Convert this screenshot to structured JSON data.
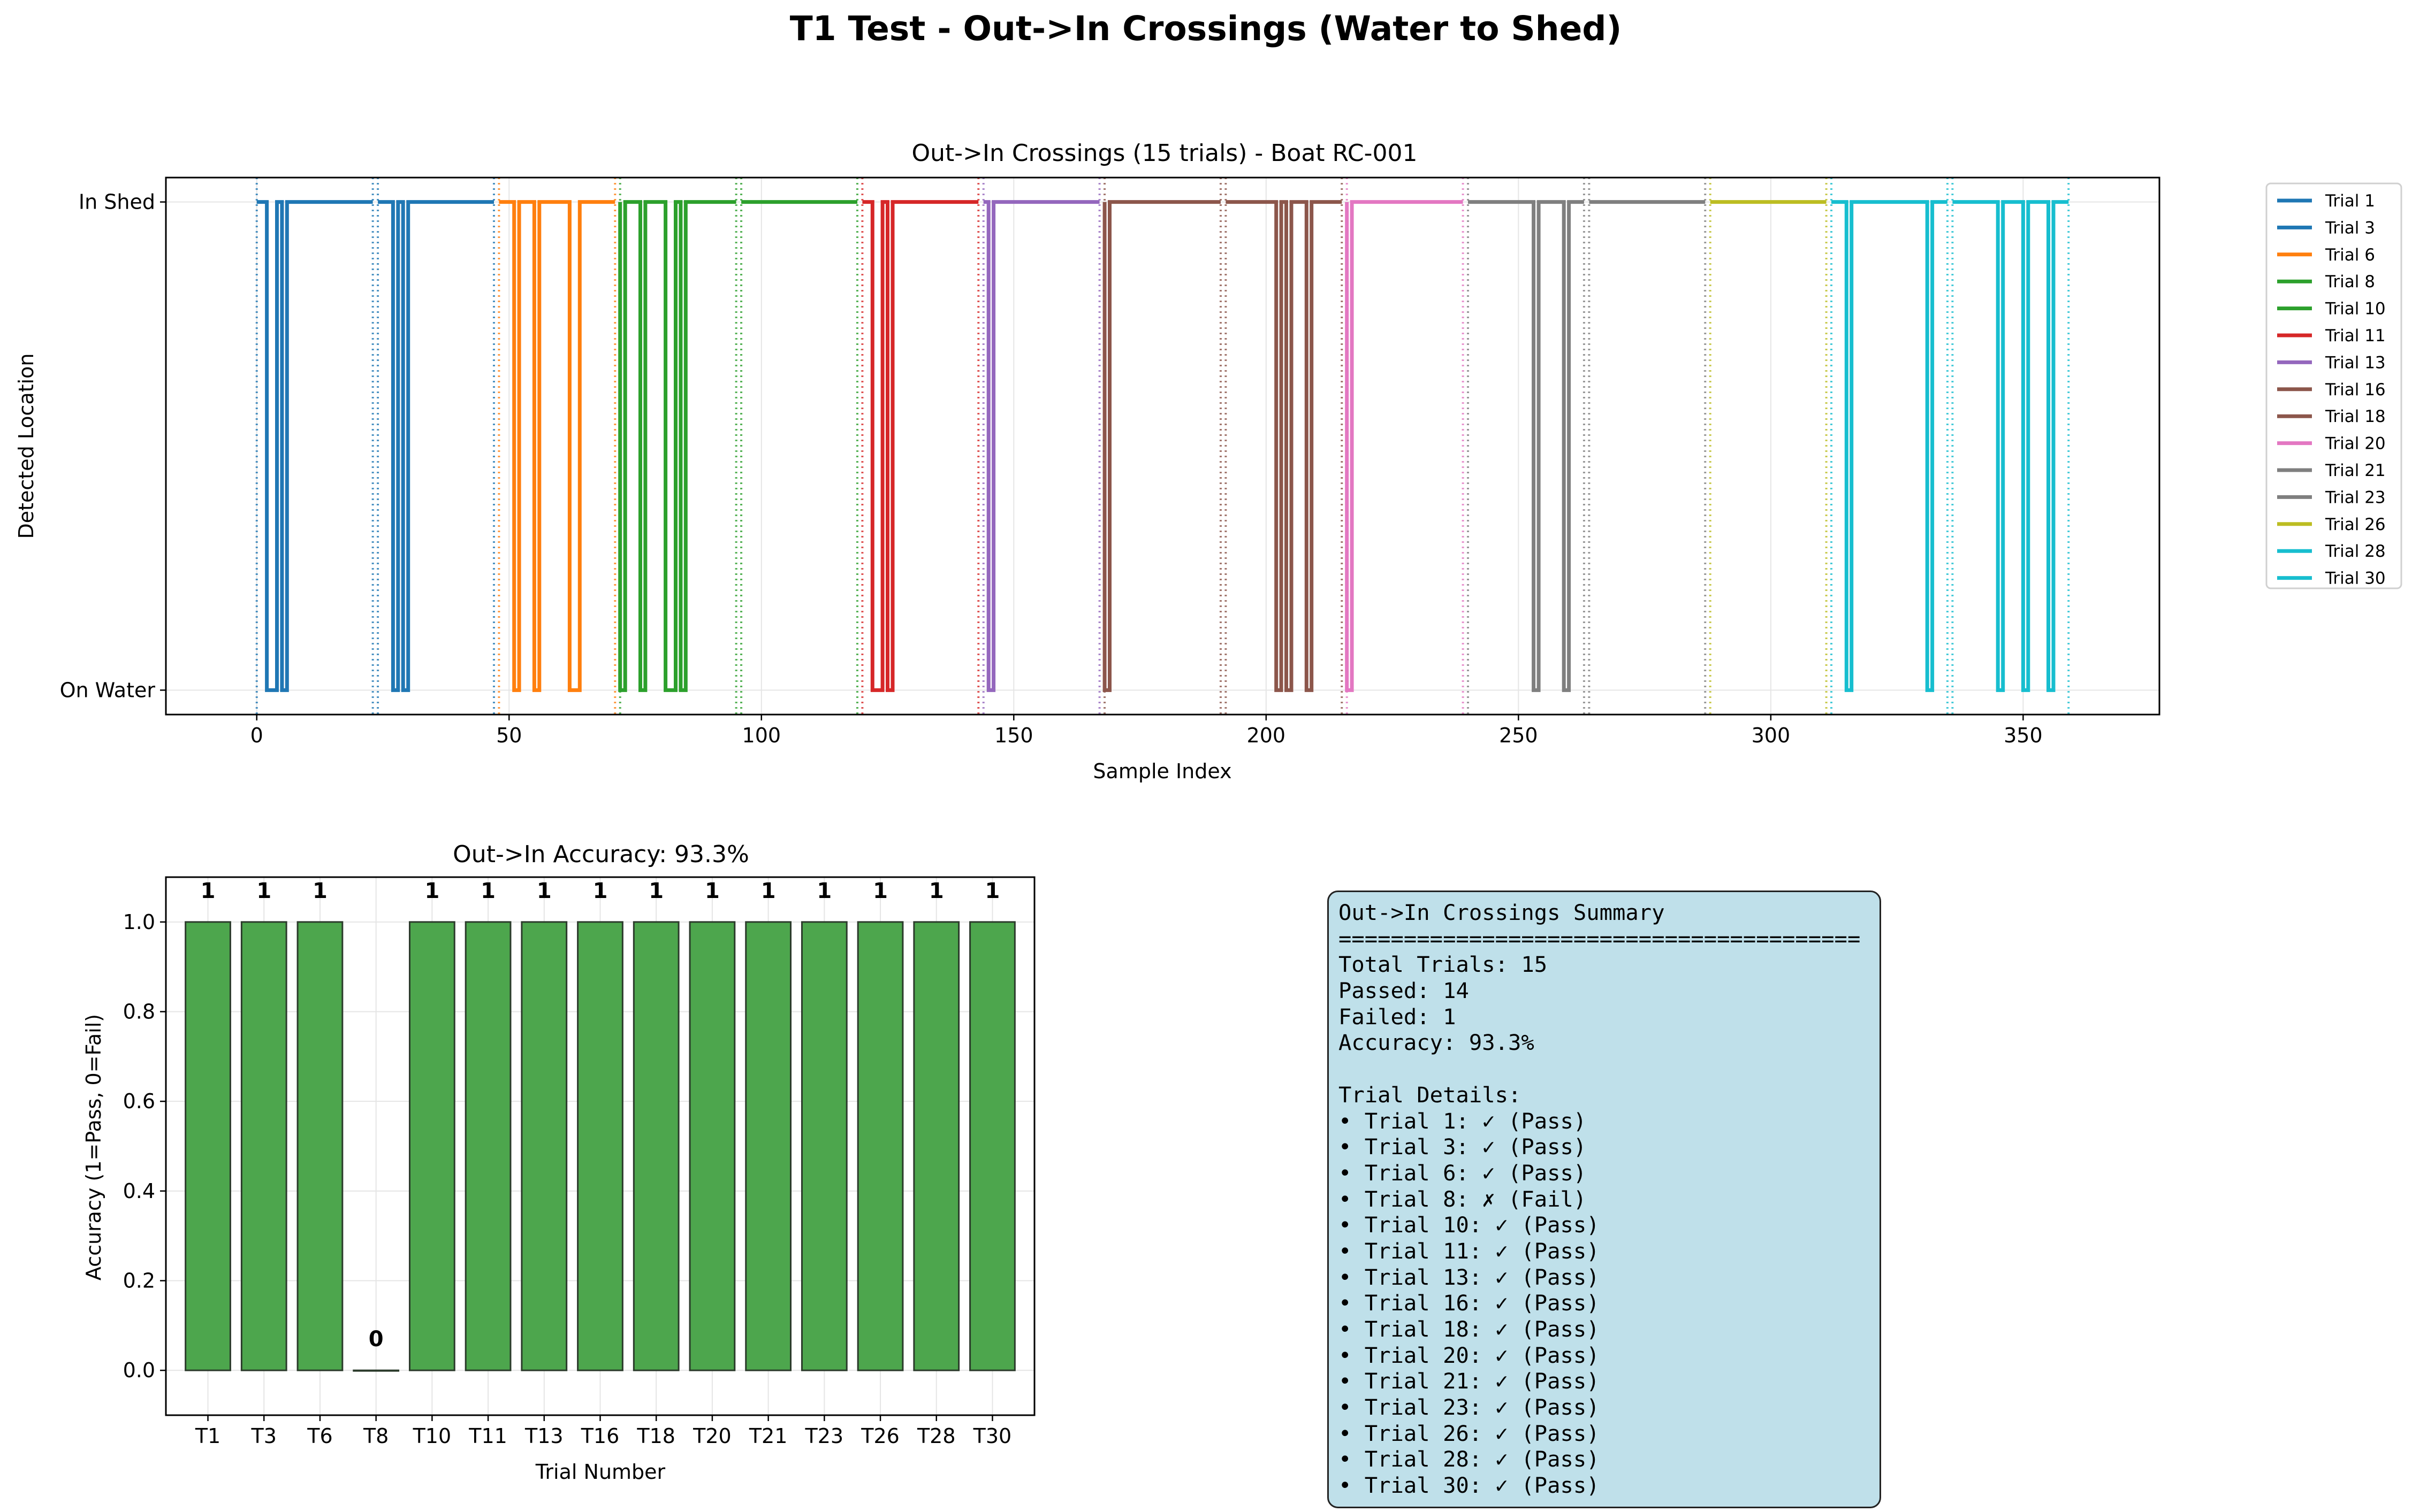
{
  "figure": {
    "suptitle": "T1 Test - Out->In Crossings (Water to Shed)"
  },
  "chart_data": [
    {
      "type": "line",
      "title": "Out->In Crossings (15 trials) - Boat RC-001",
      "xlabel": "Sample Index",
      "ylabel": "Detected Location",
      "xlim": [
        -18,
        377
      ],
      "ylim": [
        -0.05,
        1.05
      ],
      "xticks": [
        0,
        50,
        100,
        150,
        200,
        250,
        300,
        350
      ],
      "yticks": [
        0,
        1
      ],
      "ytick_labels": [
        "On Water",
        "In Shed"
      ],
      "grid": true,
      "legend_position": "outside-right",
      "series": [
        {
          "name": "Trial 1",
          "color": "#1f77b4",
          "start": 0,
          "end": 23,
          "drops": [
            [
              2,
              4
            ],
            [
              5,
              6
            ]
          ]
        },
        {
          "name": "Trial 3",
          "color": "#1f77b4",
          "start": 24,
          "end": 47,
          "drops": [
            [
              27,
              28
            ],
            [
              29,
              30
            ]
          ]
        },
        {
          "name": "Trial 6",
          "color": "#ff7f0e",
          "start": 48,
          "end": 71,
          "drops": [
            [
              51,
              52
            ],
            [
              55,
              56
            ],
            [
              62,
              64
            ]
          ]
        },
        {
          "name": "Trial 8",
          "color": "#2ca02c",
          "start": 72,
          "end": 95,
          "drops": [
            [
              72,
              73
            ],
            [
              76,
              77
            ],
            [
              81,
              83
            ],
            [
              84,
              85
            ]
          ]
        },
        {
          "name": "Trial 10",
          "color": "#2ca02c",
          "start": 96,
          "end": 119,
          "drops": []
        },
        {
          "name": "Trial 11",
          "color": "#d62728",
          "start": 120,
          "end": 143,
          "drops": [
            [
              122,
              124
            ],
            [
              125,
              126
            ]
          ]
        },
        {
          "name": "Trial 13",
          "color": "#9467bd",
          "start": 144,
          "end": 167,
          "drops": [
            [
              145,
              146
            ]
          ]
        },
        {
          "name": "Trial 16",
          "color": "#8c564b",
          "start": 168,
          "end": 191,
          "drops": [
            [
              168,
              169
            ]
          ]
        },
        {
          "name": "Trial 18",
          "color": "#8c564b",
          "start": 192,
          "end": 215,
          "drops": [
            [
              202,
              203
            ],
            [
              204,
              205
            ],
            [
              208,
              209
            ]
          ]
        },
        {
          "name": "Trial 20",
          "color": "#e377c2",
          "start": 216,
          "end": 239,
          "drops": [
            [
              216,
              217
            ]
          ]
        },
        {
          "name": "Trial 21",
          "color": "#7f7f7f",
          "start": 240,
          "end": 263,
          "drops": [
            [
              253,
              254
            ],
            [
              259,
              260
            ]
          ]
        },
        {
          "name": "Trial 23",
          "color": "#7f7f7f",
          "start": 264,
          "end": 287,
          "drops": []
        },
        {
          "name": "Trial 26",
          "color": "#bcbd22",
          "start": 288,
          "end": 311,
          "drops": []
        },
        {
          "name": "Trial 28",
          "color": "#17becf",
          "start": 312,
          "end": 335,
          "drops": [
            [
              315,
              316
            ],
            [
              331,
              332
            ]
          ]
        },
        {
          "name": "Trial 30",
          "color": "#17becf",
          "start": 336,
          "end": 359,
          "drops": [
            [
              345,
              346
            ],
            [
              350,
              351
            ],
            [
              355,
              356
            ]
          ]
        }
      ]
    },
    {
      "type": "bar",
      "title": "Out->In Accuracy: 93.3%",
      "xlabel": "Trial Number",
      "ylabel": "Accuracy (1=Pass, 0=Fail)",
      "categories": [
        "T1",
        "T3",
        "T6",
        "T8",
        "T10",
        "T11",
        "T13",
        "T16",
        "T18",
        "T20",
        "T21",
        "T23",
        "T26",
        "T28",
        "T30"
      ],
      "values": [
        1,
        1,
        1,
        0,
        1,
        1,
        1,
        1,
        1,
        1,
        1,
        1,
        1,
        1,
        1
      ],
      "ylim": [
        -0.1,
        1.1
      ],
      "yticks": [
        0.0,
        0.2,
        0.4,
        0.6,
        0.8,
        1.0
      ],
      "grid": true,
      "bar_color": "#4da64d"
    }
  ],
  "summary": {
    "lines": [
      "Out->In Crossings Summary",
      "========================================",
      "Total Trials: 15",
      "Passed: 14",
      "Failed: 1",
      "Accuracy: 93.3%",
      "",
      "Trial Details:",
      "• Trial 1: ✓ (Pass)",
      "• Trial 3: ✓ (Pass)",
      "• Trial 6: ✓ (Pass)",
      "• Trial 8: ✗ (Fail)",
      "• Trial 10: ✓ (Pass)",
      "• Trial 11: ✓ (Pass)",
      "• Trial 13: ✓ (Pass)",
      "• Trial 16: ✓ (Pass)",
      "• Trial 18: ✓ (Pass)",
      "• Trial 20: ✓ (Pass)",
      "• Trial 21: ✓ (Pass)",
      "• Trial 23: ✓ (Pass)",
      "• Trial 26: ✓ (Pass)",
      "• Trial 28: ✓ (Pass)",
      "• Trial 30: ✓ (Pass)"
    ]
  }
}
